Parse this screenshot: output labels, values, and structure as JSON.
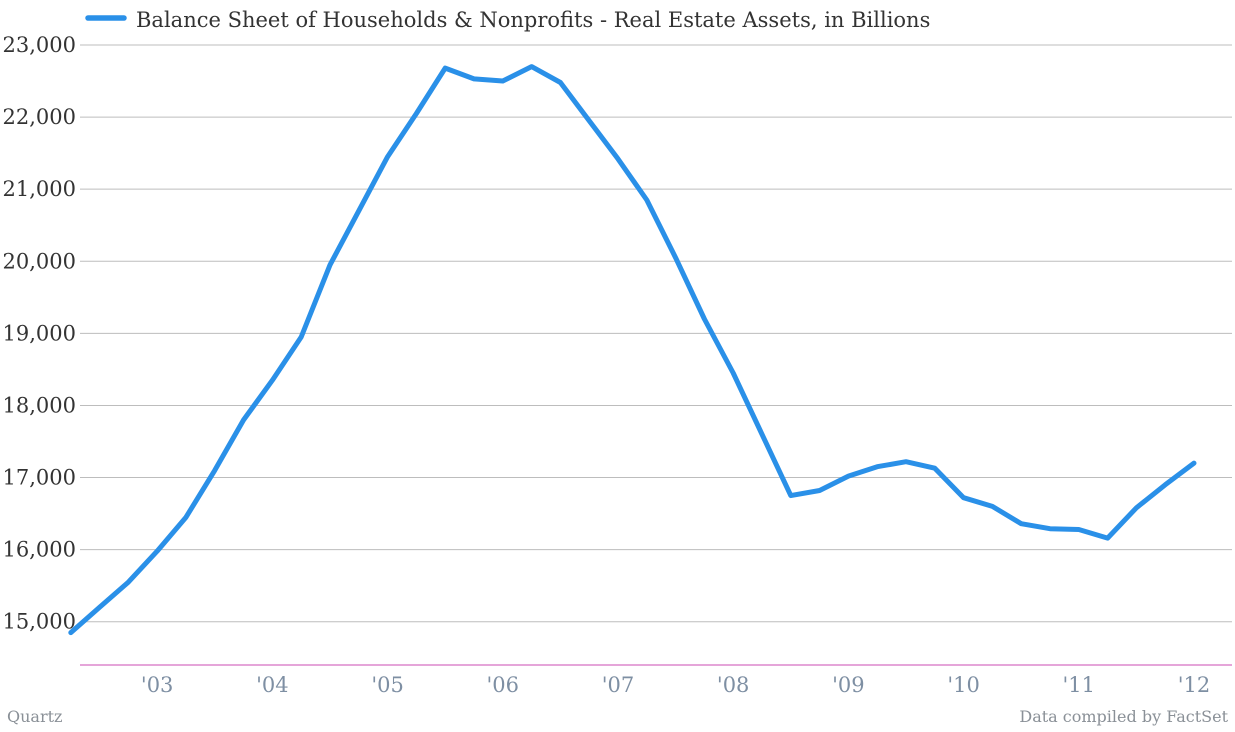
{
  "chart_data": {
    "type": "line",
    "title": "",
    "xlabel": "",
    "ylabel": "",
    "legend_position": "top-left",
    "grid": true,
    "ylim": [
      14400,
      23000
    ],
    "xlim": [
      2002.33,
      2012.33
    ],
    "y_ticks": [
      {
        "value": 15000,
        "label": "15,000"
      },
      {
        "value": 16000,
        "label": "16,000"
      },
      {
        "value": 17000,
        "label": "17,000"
      },
      {
        "value": 18000,
        "label": "18,000"
      },
      {
        "value": 19000,
        "label": "19,000"
      },
      {
        "value": 20000,
        "label": "20,000"
      },
      {
        "value": 21000,
        "label": "21,000"
      },
      {
        "value": 22000,
        "label": "22,000"
      },
      {
        "value": 23000,
        "label": "23,000"
      }
    ],
    "x_ticks": [
      {
        "value": 2003,
        "label": "'03"
      },
      {
        "value": 2004,
        "label": "'04"
      },
      {
        "value": 2005,
        "label": "'05"
      },
      {
        "value": 2006,
        "label": "'06"
      },
      {
        "value": 2007,
        "label": "'07"
      },
      {
        "value": 2008,
        "label": "'08"
      },
      {
        "value": 2009,
        "label": "'09"
      },
      {
        "value": 2010,
        "label": "'10"
      },
      {
        "value": 2011,
        "label": "'11"
      },
      {
        "value": 2012,
        "label": "'12"
      }
    ],
    "series": [
      {
        "name": "Balance Sheet of Households & Nonprofits - Real Estate Assets, in Billions",
        "color": "#2a90e8",
        "x": [
          2002.25,
          2002.5,
          2002.75,
          2003.0,
          2003.25,
          2003.5,
          2003.75,
          2004.0,
          2004.25,
          2004.5,
          2004.75,
          2005.0,
          2005.25,
          2005.5,
          2005.75,
          2006.0,
          2006.25,
          2006.5,
          2006.75,
          2007.0,
          2007.25,
          2007.5,
          2007.75,
          2008.0,
          2008.25,
          2008.5,
          2008.75,
          2009.0,
          2009.25,
          2009.5,
          2009.75,
          2010.0,
          2010.25,
          2010.5,
          2010.75,
          2011.0,
          2011.25,
          2011.5,
          2011.75,
          2012.0
        ],
        "y": [
          14850,
          15200,
          15550,
          15980,
          16450,
          17100,
          17800,
          18350,
          18950,
          19950,
          20700,
          21450,
          22050,
          22680,
          22530,
          22500,
          22700,
          22480,
          21950,
          21420,
          20850,
          20050,
          19200,
          18450,
          17600,
          16750,
          16820,
          17020,
          17150,
          17220,
          17130,
          16720,
          16600,
          16360,
          16290,
          16280,
          16160,
          16580,
          16900,
          17200
        ]
      }
    ]
  },
  "footer": {
    "source_left": "Quartz",
    "source_right": "Data compiled by FactSet"
  }
}
